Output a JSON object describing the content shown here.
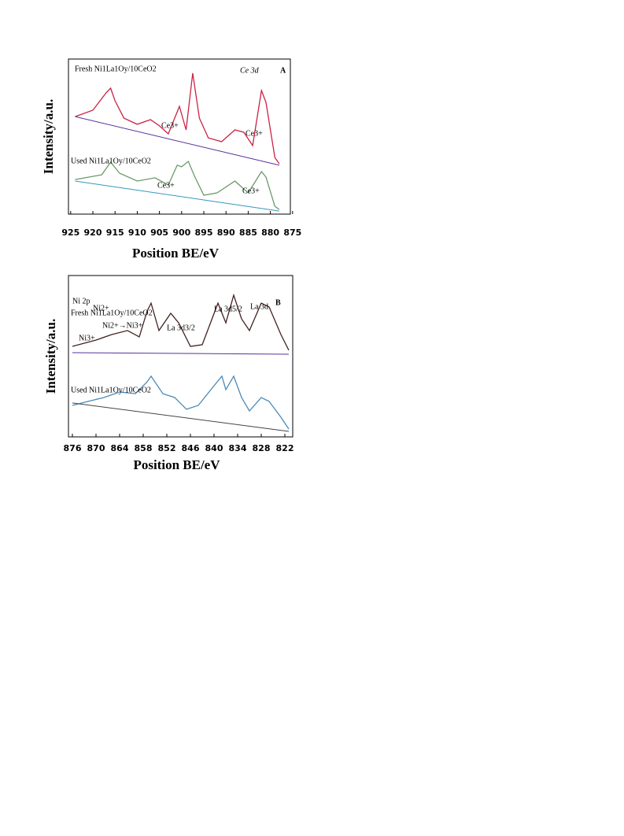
{
  "chart_data": [
    {
      "type": "line",
      "x_label": "Position BE/eV",
      "y_label": "Intensity/a.u.",
      "xlim": [
        925.5,
        875.5
      ],
      "ylim": [
        0,
        100
      ],
      "xticks": [
        925,
        920,
        915,
        910,
        905,
        900,
        895,
        890,
        885,
        880,
        875
      ],
      "annotations": [
        "Fresh Ni1La1Oy/10CeO2",
        "Ce 3d",
        "A",
        "Ce3+",
        "Ce3+",
        "Used Ni1La1Oy/10CeO2",
        "Ce3+",
        "Ce3+"
      ],
      "series": [
        {
          "color": "#cc2244",
          "x": [
            924,
            920,
            917,
            916,
            915,
            913,
            910,
            907,
            905,
            903,
            900.5,
            899,
            897.5,
            896,
            894,
            891,
            888,
            886,
            884,
            882,
            881,
            879,
            878
          ],
          "values": [
            62.9,
            67.0,
            78.2,
            81.2,
            73.1,
            61.9,
            57.9,
            60.9,
            56.9,
            51.8,
            69.5,
            54.3,
            90.9,
            61.9,
            49.2,
            46.7,
            54.3,
            52.8,
            44.2,
            79.7,
            72.1,
            36.5,
            32.5
          ]
        },
        {
          "color": "#553399",
          "x": [
            924,
            878
          ],
          "values": [
            62.9,
            31.5
          ]
        },
        {
          "color": "#6a9a6a",
          "x": [
            924,
            918,
            916,
            914,
            910,
            906,
            903,
            901,
            900,
            898.5,
            897,
            895,
            892,
            888,
            885,
            882,
            881,
            879,
            878
          ],
          "values": [
            22.3,
            25.4,
            33.5,
            26.4,
            21.3,
            23.4,
            18.8,
            31.5,
            30.5,
            34.0,
            23.9,
            12.2,
            13.7,
            21.3,
            13.7,
            27.4,
            23.9,
            5.1,
            3.0
          ]
        },
        {
          "color": "#3399bb",
          "x": [
            924,
            878
          ],
          "values": [
            21.3,
            2.0
          ]
        }
      ]
    },
    {
      "type": "line",
      "x_label": "Position BE/eV",
      "y_label": "Intensity/a.u.",
      "xlim": [
        877,
        820
      ],
      "ylim": [
        0,
        100
      ],
      "xticks": [
        876,
        870,
        864,
        858,
        852,
        846,
        840,
        834,
        828,
        822
      ],
      "annotations": [
        "Ni 2p",
        "Fresh Ni1La1Oy/10CeO2",
        "B",
        "Ni2+",
        "La 3d3/2",
        "La 3d5/2",
        "La 3d",
        "Ni3+",
        "Ni2+→Ni3+",
        "Used Ni1La1Oy/10CeO2"
      ],
      "series": [
        {
          "color": "#442222",
          "x": [
            876,
            870,
            866,
            862,
            859,
            857,
            856,
            854,
            851,
            849,
            846,
            843,
            839,
            837,
            835,
            833,
            831,
            828,
            826,
            823,
            821
          ],
          "values": [
            56.1,
            60.0,
            63.4,
            65.9,
            62.0,
            78.0,
            82.9,
            65.9,
            76.6,
            70.7,
            56.1,
            57.1,
            82.9,
            70.7,
            87.8,
            73.1,
            65.9,
            82.9,
            80.5,
            63.4,
            53.7
          ]
        },
        {
          "color": "#553399",
          "x": [
            876,
            821
          ],
          "values": [
            52.2,
            51.2
          ]
        },
        {
          "color": "#4a8ab8",
          "x": [
            876,
            872,
            868,
            864,
            860,
            857,
            856,
            853,
            850,
            847,
            844,
            840,
            838,
            837,
            835,
            833,
            831,
            828,
            826,
            823,
            821
          ],
          "values": [
            19.5,
            22.0,
            24.4,
            27.8,
            26.8,
            34.1,
            37.6,
            26.8,
            24.4,
            17.1,
            19.5,
            31.7,
            37.6,
            29.3,
            37.6,
            24.4,
            16.1,
            24.4,
            22.0,
            12.2,
            4.9
          ]
        },
        {
          "color": "#444444",
          "x": [
            876,
            821
          ],
          "values": [
            21.0,
            3.4
          ]
        }
      ]
    }
  ]
}
